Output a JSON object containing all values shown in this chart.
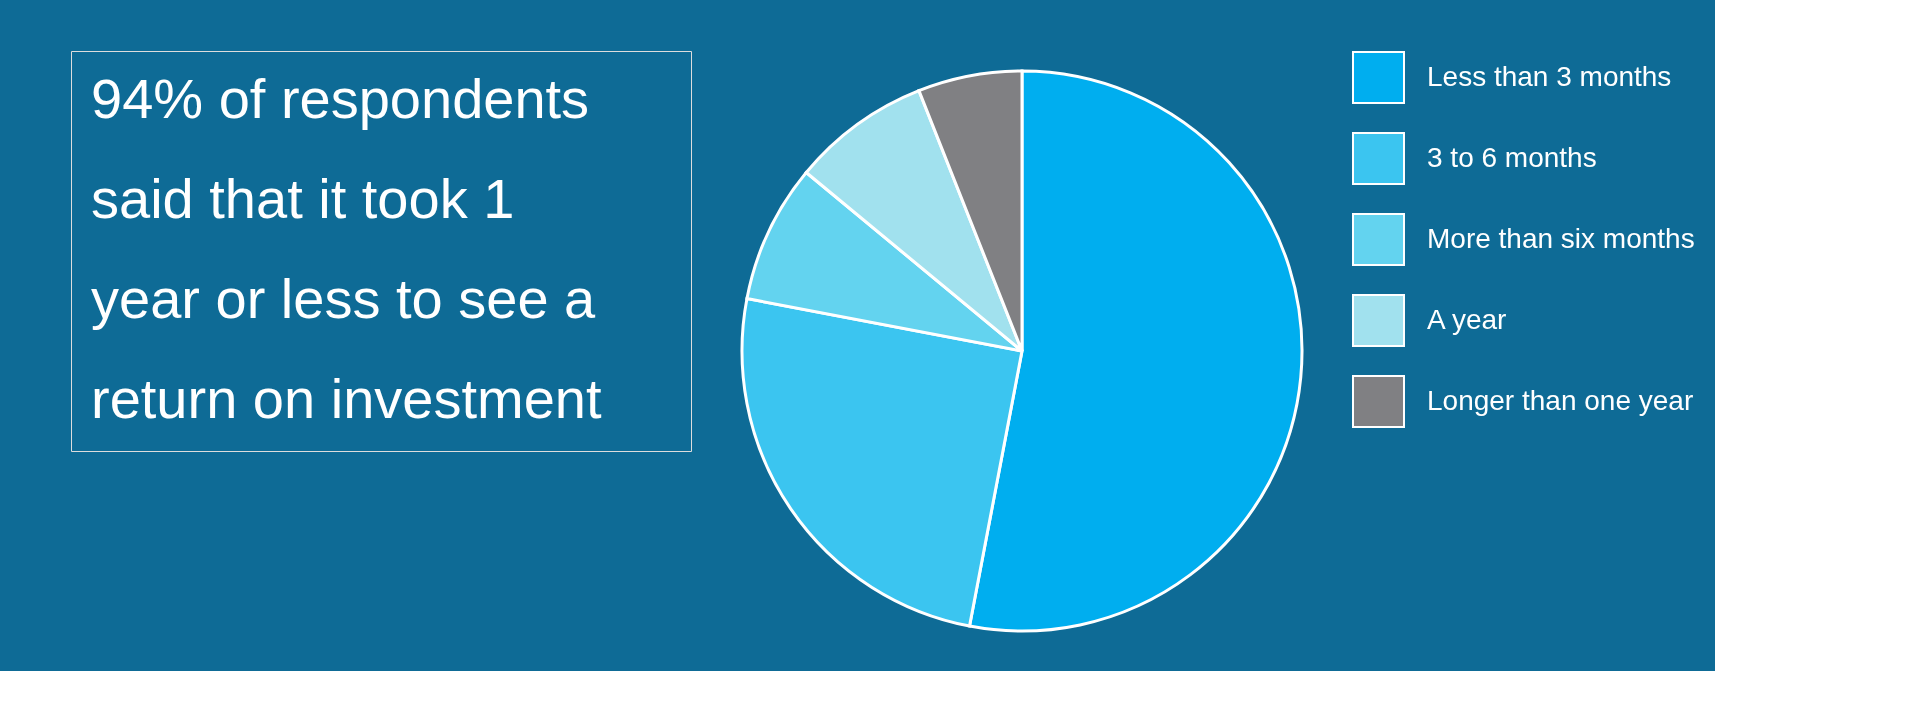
{
  "chart_data": {
    "type": "pie",
    "title": "94% of respondents said that it took 1 year or less to see a return on investment",
    "categories": [
      "Less than 3 months",
      "3 to 6 months",
      "More than six months",
      "A year",
      "Longer than one year"
    ],
    "values": [
      53,
      25,
      8,
      8,
      6
    ],
    "colors": [
      "#00aeef",
      "#3bc5f0",
      "#63d3ef",
      "#a1e1ee",
      "#808083"
    ],
    "legend": "right"
  }
}
